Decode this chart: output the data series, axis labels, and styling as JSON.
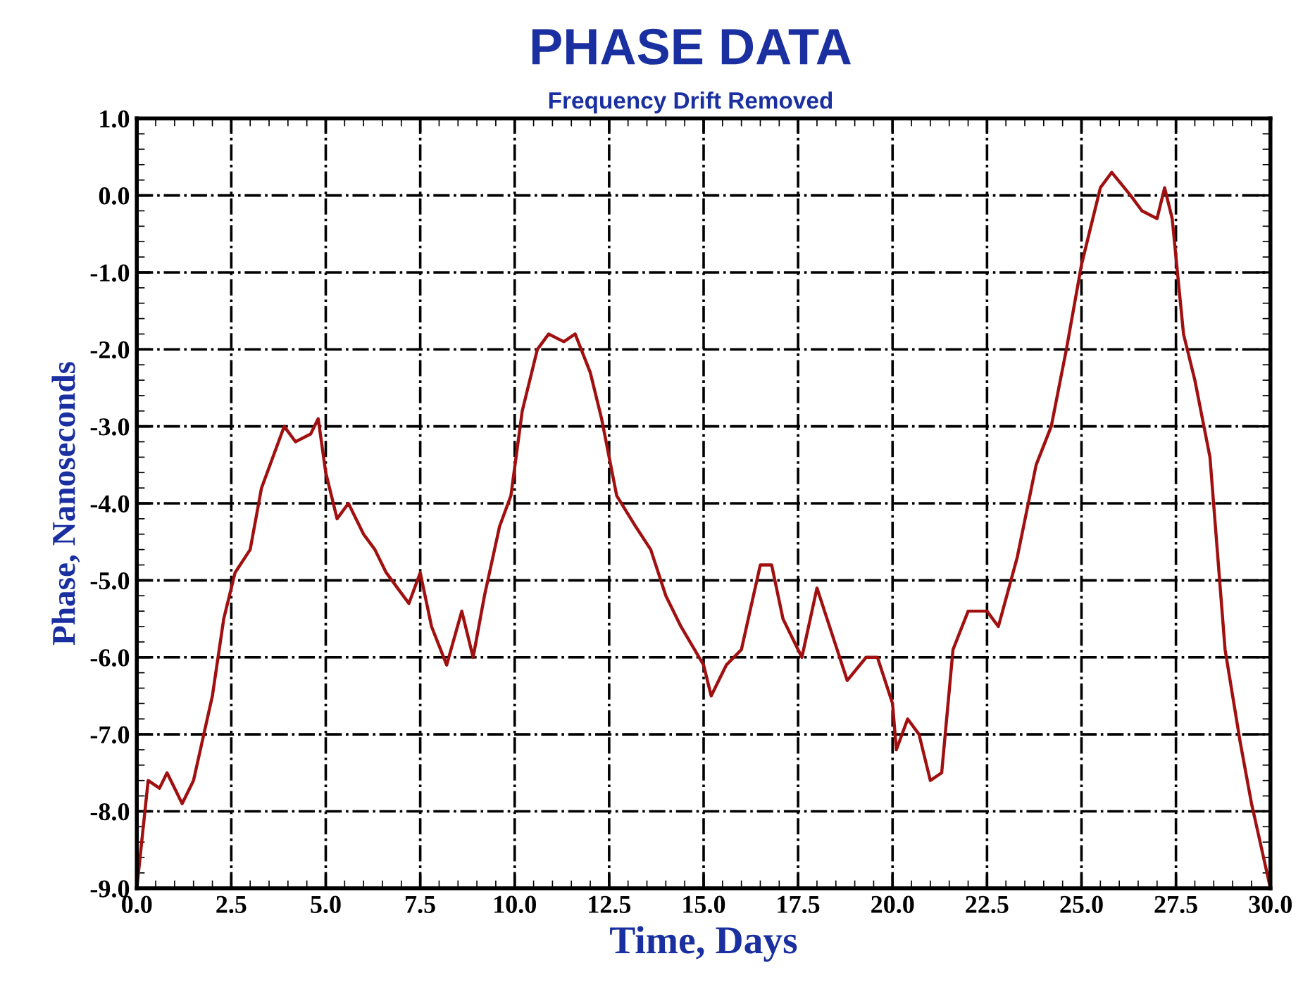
{
  "chart_data": {
    "type": "line",
    "title": "PHASE DATA",
    "subtitle": "Frequency Drift Removed",
    "xlabel": "Time, Days",
    "ylabel": "Phase, Nanoseconds",
    "xlim": [
      0,
      30
    ],
    "xticks": [
      {
        "value": 0,
        "label": "0.0"
      },
      {
        "value": 2.5,
        "label": "2.5"
      },
      {
        "value": 5,
        "label": "5.0"
      },
      {
        "value": 7.5,
        "label": "7.5"
      },
      {
        "value": 10,
        "label": "10.0"
      },
      {
        "value": 12.5,
        "label": "12.5"
      },
      {
        "value": 15,
        "label": "15.0"
      },
      {
        "value": 17.5,
        "label": "17.5"
      },
      {
        "value": 20,
        "label": "20.0"
      },
      {
        "value": 22.5,
        "label": "22.5"
      },
      {
        "value": 25,
        "label": "25.0"
      },
      {
        "value": 27.5,
        "label": "27.5"
      },
      {
        "value": 30,
        "label": "30.0"
      }
    ],
    "ylim": [
      -9,
      1
    ],
    "yticks": [
      {
        "value": 1,
        "label": "1.0"
      },
      {
        "value": 0,
        "label": "0.0"
      },
      {
        "value": -1,
        "label": "-1.0"
      },
      {
        "value": -2,
        "label": "-2.0"
      },
      {
        "value": -3,
        "label": "-3.0"
      },
      {
        "value": -4,
        "label": "-4.0"
      },
      {
        "value": -5,
        "label": "-5.0"
      },
      {
        "value": -6,
        "label": "-6.0"
      },
      {
        "value": -7,
        "label": "-7.0"
      },
      {
        "value": -8,
        "label": "-8.0"
      },
      {
        "value": -9,
        "label": "-9.0"
      }
    ],
    "grid": true,
    "marker": "none",
    "line_style": "solid",
    "series": [
      {
        "color": "#a01010",
        "x": [
          0,
          0.3,
          0.6,
          0.8,
          1.2,
          1.5,
          2.0,
          2.3,
          2.6,
          3.0,
          3.3,
          3.6,
          3.9,
          4.2,
          4.6,
          4.8,
          5.0,
          5.3,
          5.6,
          6.0,
          6.3,
          6.6,
          6.9,
          7.2,
          7.5,
          7.8,
          8.2,
          8.6,
          8.9,
          9.2,
          9.6,
          9.9,
          10.2,
          10.6,
          10.9,
          11.3,
          11.6,
          12.0,
          12.3,
          12.7,
          13.2,
          13.6,
          14.0,
          14.4,
          15.0,
          15.2,
          15.6,
          16.0,
          16.5,
          16.8,
          17.1,
          17.6,
          18.0,
          18.4,
          18.8,
          19.3,
          19.6,
          20.0,
          20.1,
          20.4,
          20.7,
          21.0,
          21.3,
          21.6,
          22.0,
          22.5,
          22.8,
          23.3,
          23.8,
          24.2,
          24.6,
          25.0,
          25.3,
          25.5,
          25.8,
          26.3,
          26.6,
          27.0,
          27.2,
          27.4,
          27.7,
          28.0,
          28.4,
          28.8,
          29.2,
          29.5,
          30.0
        ],
        "values": [
          -9.0,
          -7.6,
          -7.7,
          -7.5,
          -7.9,
          -7.6,
          -6.5,
          -5.5,
          -4.9,
          -4.6,
          -3.8,
          -3.4,
          -3.0,
          -3.2,
          -3.1,
          -2.9,
          -3.6,
          -4.2,
          -4.0,
          -4.4,
          -4.6,
          -4.9,
          -5.1,
          -5.3,
          -4.9,
          -5.6,
          -6.1,
          -5.4,
          -6.0,
          -5.2,
          -4.3,
          -3.9,
          -2.8,
          -2.0,
          -1.8,
          -1.9,
          -1.8,
          -2.3,
          -2.9,
          -3.9,
          -4.3,
          -4.6,
          -5.2,
          -5.6,
          -6.1,
          -6.5,
          -6.1,
          -5.9,
          -4.8,
          -4.8,
          -5.5,
          -6.0,
          -5.1,
          -5.7,
          -6.3,
          -6.0,
          -6.0,
          -6.6,
          -7.2,
          -6.8,
          -7.0,
          -7.6,
          -7.5,
          -5.9,
          -5.4,
          -5.4,
          -5.6,
          -4.7,
          -3.5,
          -3.0,
          -2.0,
          -0.9,
          -0.3,
          0.1,
          0.3,
          0.0,
          -0.2,
          -0.3,
          0.1,
          -0.3,
          -1.8,
          -2.4,
          -3.4,
          -5.9,
          -7.1,
          -7.9,
          -9.0
        ]
      }
    ]
  }
}
